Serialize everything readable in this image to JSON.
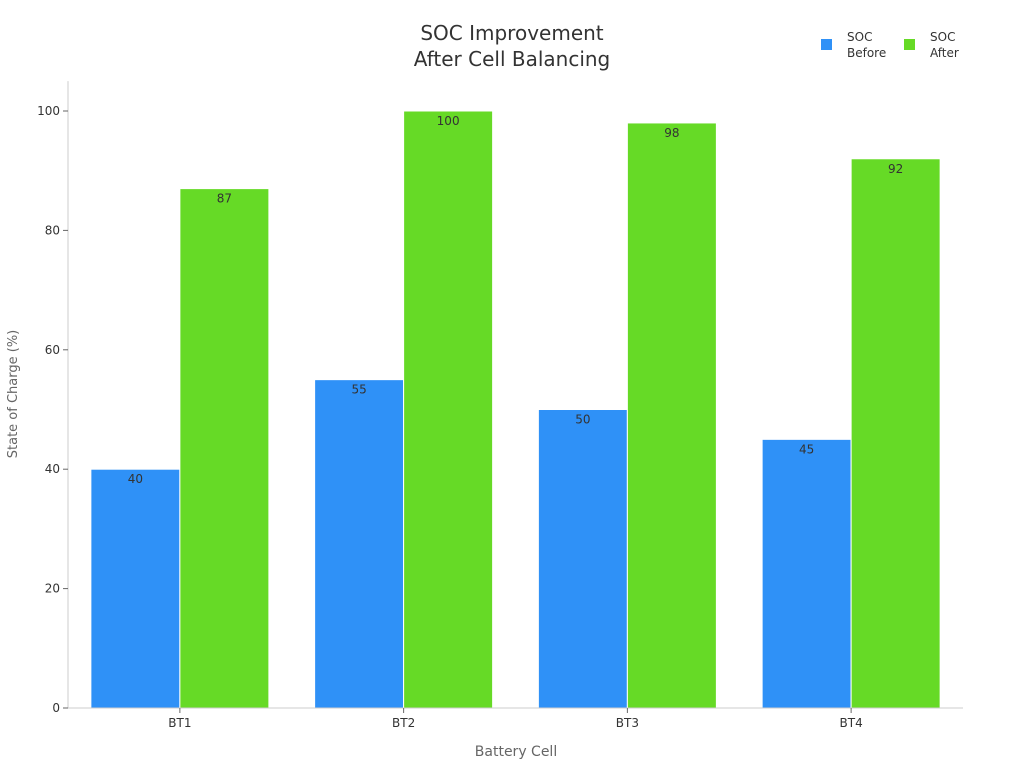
{
  "chart_data": {
    "type": "bar",
    "title": [
      "SOC Improvement",
      "After Cell Balancing"
    ],
    "xlabel": "Battery Cell",
    "ylabel": "State of Charge (%)",
    "categories": [
      "BT1",
      "BT2",
      "BT3",
      "BT4"
    ],
    "series": [
      {
        "name": "SOC Before",
        "legend_lines": [
          "SOC",
          "Before"
        ],
        "color": "#2f91f7",
        "values": [
          40,
          55,
          50,
          45
        ]
      },
      {
        "name": "SOC After",
        "legend_lines": [
          "SOC",
          "After"
        ],
        "color": "#66da26",
        "values": [
          87,
          100,
          98,
          92
        ]
      }
    ],
    "ylim": [
      0,
      105
    ],
    "yticks": [
      0,
      20,
      40,
      60,
      80,
      100
    ],
    "grid": false,
    "legend_position": "top-right",
    "data_labels": true
  }
}
